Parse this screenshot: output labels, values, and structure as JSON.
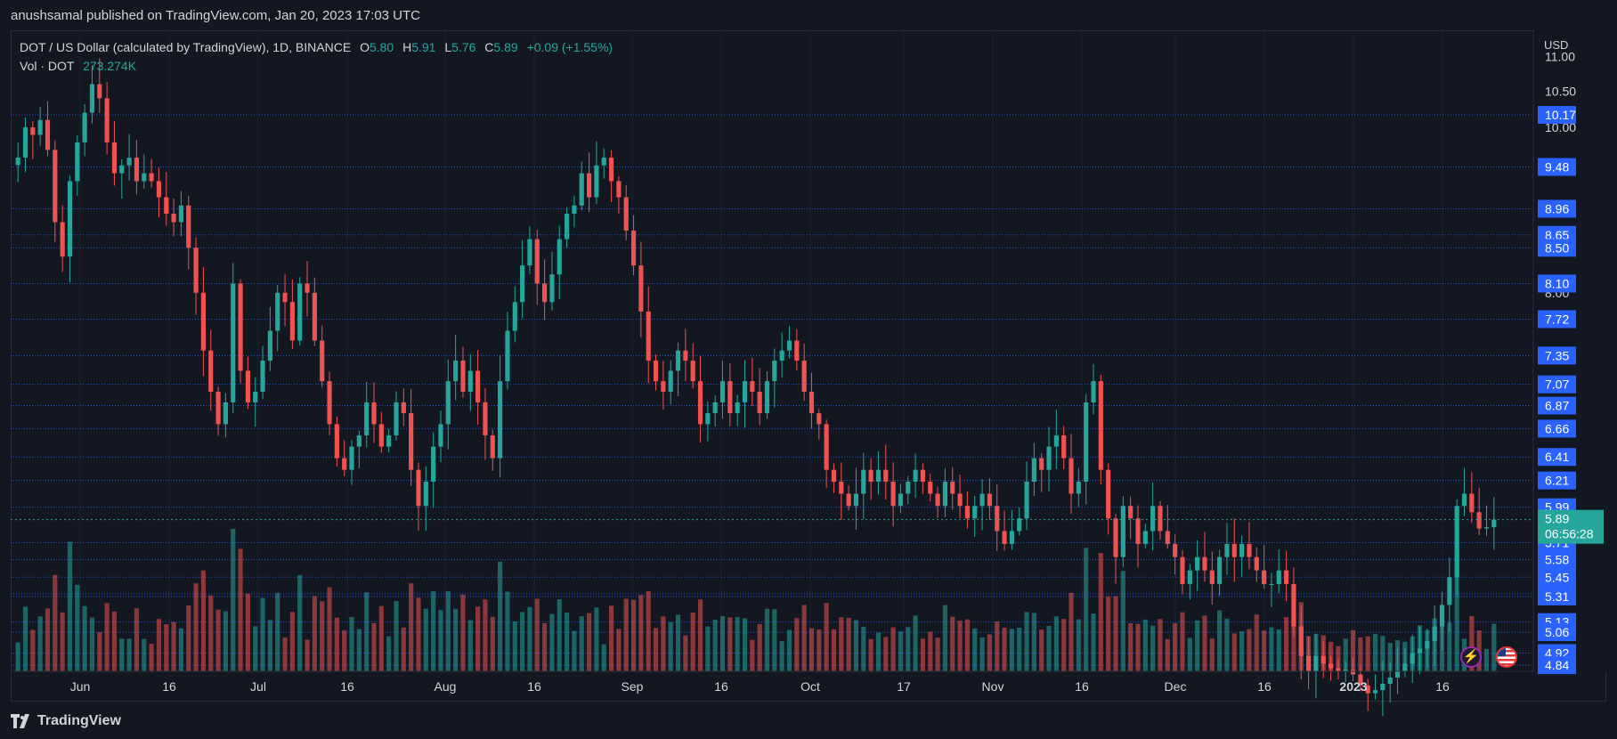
{
  "header": {
    "publish_text": "anushsamal published on TradingView.com, Jan 20, 2023 17:03 UTC"
  },
  "legend": {
    "symbol": "DOT / US Dollar (calculated by TradingView), 1D, BINANCE",
    "o_label": "O",
    "o_value": "5.80",
    "h_label": "H",
    "h_value": "5.91",
    "l_label": "L",
    "l_value": "5.76",
    "c_label": "C",
    "c_value": "5.89",
    "change": "+0.09 (+1.55%)",
    "vol_label": "Vol · DOT",
    "vol_value": "273.274K"
  },
  "footer": {
    "brand": "TradingView"
  },
  "colors": {
    "up": "#26a69a",
    "down": "#ef5350",
    "background": "#131722",
    "level_line": "#2962ff",
    "price_tag": "#26a69a"
  },
  "icons": [
    "lightning-icon",
    "us-flag-icon"
  ],
  "chart_data": {
    "type": "candlestick",
    "x_tick_labels": [
      "Jun",
      "16",
      "Jul",
      "16",
      "Aug",
      "16",
      "Sep",
      "16",
      "Oct",
      "17",
      "Nov",
      "16",
      "Dec",
      "16",
      "2023",
      "16"
    ],
    "y_axis_unit": "USD",
    "y_tick_labels": [
      "11.00",
      "10.50",
      "10.00",
      "8.00"
    ],
    "ylim": [
      4.8,
      11.4
    ],
    "y_scale": "log",
    "horizontal_levels": [
      "10.17",
      "9.48",
      "8.96",
      "8.65",
      "8.50",
      "8.10",
      "7.72",
      "7.35",
      "7.07",
      "6.87",
      "6.66",
      "6.41",
      "6.21",
      "5.99",
      "5.71",
      "5.58",
      "5.45",
      "5.33",
      "5.31",
      "5.13",
      "5.06",
      "4.92",
      "4.84"
    ],
    "current_price": "5.89",
    "countdown": "06:56:28",
    "series": [
      {
        "date_range": [
          "2022-05-23",
          "2023-01-20"
        ],
        "close": [
          9.6,
          10.0,
          9.9,
          10.1,
          9.7,
          8.8,
          8.4,
          9.3,
          9.8,
          10.2,
          10.6,
          10.4,
          9.8,
          9.4,
          9.5,
          9.6,
          9.3,
          9.4,
          9.3,
          9.1,
          8.9,
          8.8,
          9.0,
          8.5,
          8.0,
          7.4,
          7.0,
          6.7,
          6.9,
          8.1,
          7.2,
          6.9,
          7.0,
          7.3,
          7.6,
          8.0,
          7.9,
          7.5,
          8.1,
          8.0,
          7.5,
          7.1,
          6.7,
          6.4,
          6.3,
          6.5,
          6.6,
          6.9,
          6.7,
          6.5,
          6.6,
          6.9,
          6.8,
          6.3,
          6.0,
          6.2,
          6.5,
          6.7,
          7.1,
          7.3,
          7.0,
          7.2,
          6.9,
          6.6,
          6.4,
          7.1,
          7.6,
          7.9,
          8.3,
          8.6,
          8.1,
          7.9,
          8.2,
          8.6,
          8.9,
          9.0,
          9.4,
          9.1,
          9.5,
          9.6,
          9.3,
          9.1,
          8.7,
          8.3,
          7.8,
          7.3,
          7.1,
          7.0,
          7.2,
          7.4,
          7.3,
          7.1,
          6.7,
          6.8,
          6.9,
          7.1,
          6.8,
          6.9,
          7.1,
          7.0,
          6.8,
          7.1,
          7.3,
          7.4,
          7.5,
          7.3,
          7.0,
          6.8,
          6.7,
          6.3,
          6.2,
          6.1,
          6.0,
          6.1,
          6.3,
          6.2,
          6.3,
          6.2,
          6.0,
          6.1,
          6.2,
          6.3,
          6.2,
          6.1,
          6.0,
          6.2,
          6.1,
          6.0,
          5.9,
          6.0,
          6.1,
          6.0,
          5.8,
          5.7,
          5.8,
          5.9,
          6.2,
          6.4,
          6.3,
          6.5,
          6.6,
          6.4,
          6.1,
          6.2,
          6.9,
          7.1,
          6.3,
          5.9,
          5.6,
          6.0,
          5.9,
          5.7,
          5.8,
          6.0,
          5.8,
          5.7,
          5.6,
          5.4,
          5.5,
          5.6,
          5.5,
          5.4,
          5.6,
          5.7,
          5.6,
          5.7,
          5.6,
          5.5,
          5.4,
          5.4,
          5.5,
          5.4,
          5.1,
          4.9,
          4.8,
          4.9,
          4.85,
          4.82,
          4.8,
          4.81,
          4.78,
          4.71,
          4.66,
          4.68,
          4.72,
          4.76,
          4.8,
          4.85,
          4.92,
          4.95,
          5.0,
          5.1,
          5.25,
          5.45,
          6.0,
          6.1,
          5.95,
          5.82,
          5.83,
          5.89
        ]
      }
    ],
    "volume_series": {
      "label": "Vol · DOT",
      "last": "273.274K"
    }
  }
}
